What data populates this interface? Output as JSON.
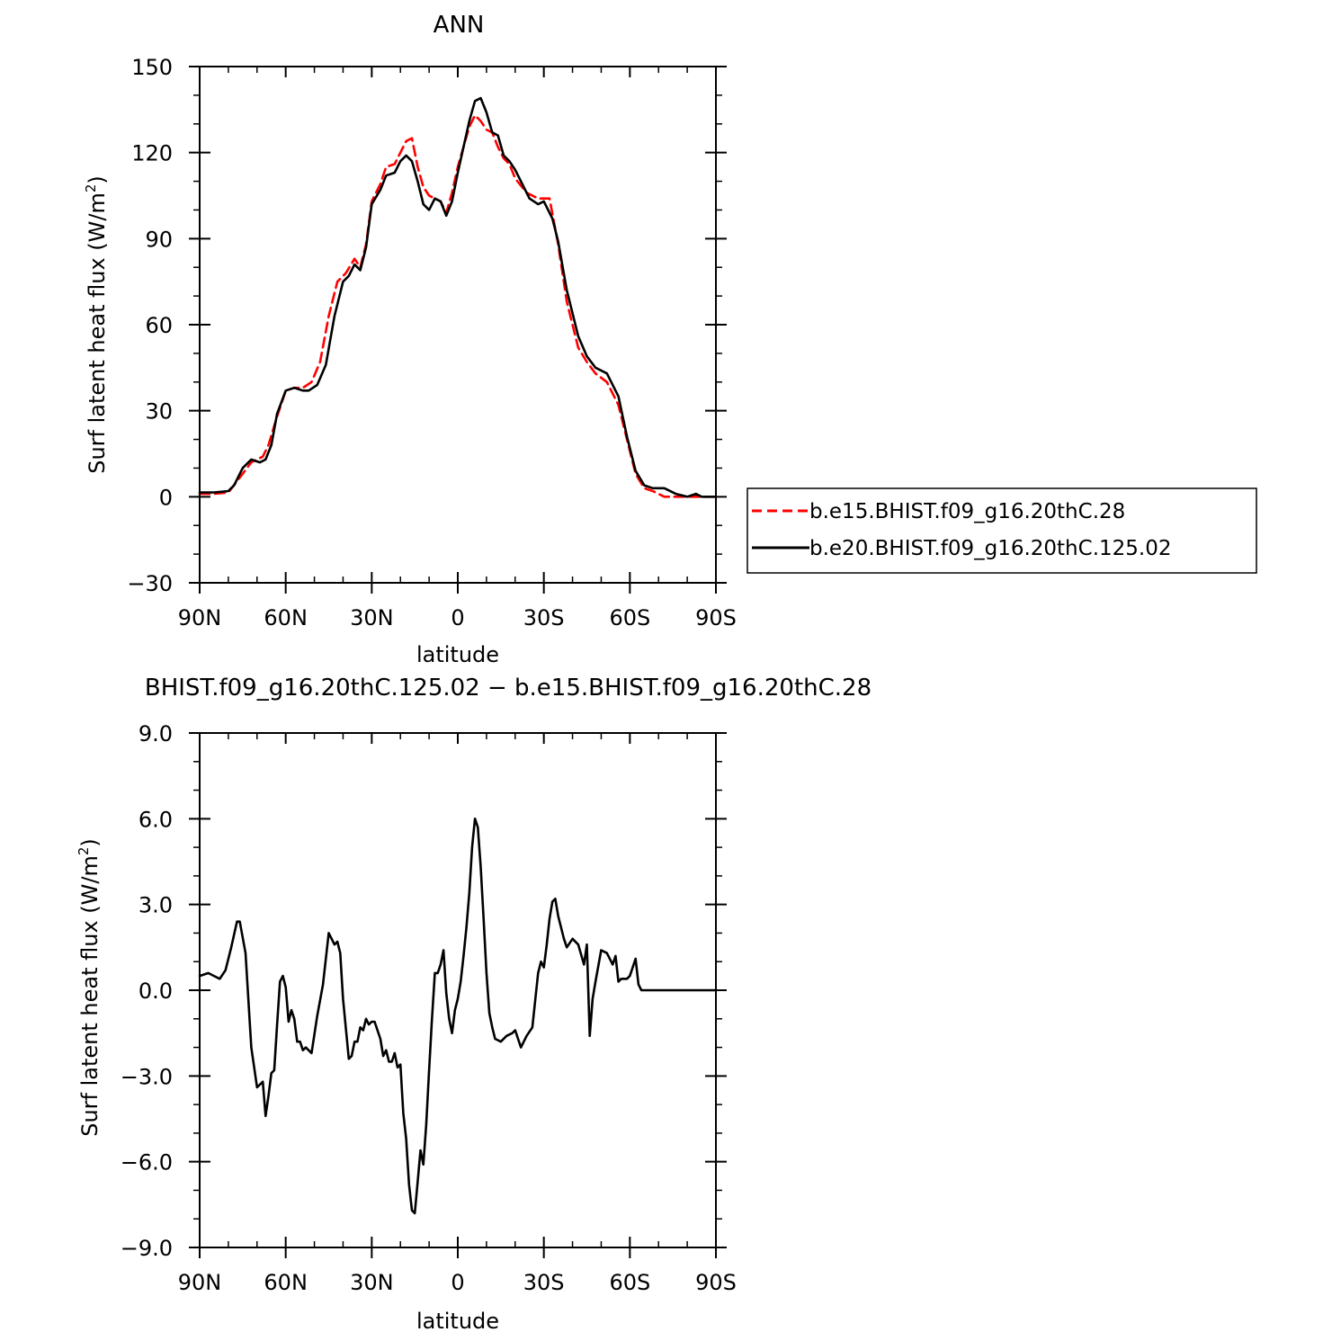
{
  "chart_data": [
    {
      "type": "line",
      "title": "ANN",
      "xlabel": "latitude",
      "ylabel": "Surf latent heat flux (W/m",
      "ylabel_sup": "2",
      "ylabel_end": ")",
      "xlim": [
        90,
        -90
      ],
      "ylim": [
        -30,
        150
      ],
      "x_ticks": [
        90,
        60,
        30,
        0,
        -30,
        -60,
        -90
      ],
      "x_tick_labels": [
        "90N",
        "60N",
        "30N",
        "0",
        "30S",
        "60S",
        "90S"
      ],
      "y_ticks": [
        -30,
        0,
        30,
        60,
        90,
        120,
        150
      ],
      "y_tick_labels": [
        "−30",
        "0",
        "30",
        "60",
        "90",
        "120",
        "150"
      ],
      "legend": {
        "placement": "right",
        "style": "boxed"
      },
      "series": [
        {
          "name": "b.e15.BHIST.f09_g16.20thC.28",
          "color": "#ff0000",
          "dash": "dashed",
          "x": [
            90,
            85,
            80,
            75,
            72,
            68,
            66,
            63,
            60,
            57,
            54,
            51,
            48,
            45,
            42,
            39,
            36,
            34,
            32,
            30,
            27,
            25,
            22,
            20,
            18,
            16,
            14,
            12,
            10,
            8,
            6,
            4,
            2,
            0,
            -2,
            -4,
            -6,
            -8,
            -10,
            -12,
            -14,
            -16,
            -18,
            -20,
            -24,
            -28,
            -32,
            -35,
            -38,
            -42,
            -45,
            -48,
            -52,
            -56,
            -59,
            -62,
            -65,
            -68,
            -72,
            -76,
            -80,
            -84,
            -87,
            -90
          ],
          "y": [
            1,
            1,
            1.5,
            8,
            12,
            14,
            18,
            28,
            37,
            38,
            38,
            40,
            47,
            63,
            75,
            78,
            83,
            80,
            88,
            103,
            109,
            115,
            116,
            120,
            124,
            125,
            115,
            108,
            105,
            104,
            103,
            99,
            106,
            115,
            122,
            129,
            133,
            131,
            128,
            127,
            122,
            118,
            116,
            111,
            106,
            104,
            104,
            88,
            68,
            52,
            47,
            43,
            40,
            32,
            20,
            8,
            3,
            2,
            0,
            0,
            0,
            0,
            0,
            0
          ]
        },
        {
          "name": "b.e20.BHIST.f09_g16.20thC.125.02",
          "color": "#000000",
          "dash": "solid",
          "x": [
            90,
            85,
            80,
            78,
            75,
            72,
            69,
            67,
            65,
            63,
            60,
            57,
            54,
            52,
            49,
            46,
            43,
            40,
            38,
            36,
            34,
            32,
            30,
            27,
            25,
            22,
            20,
            18,
            16,
            14,
            12,
            10,
            8,
            6,
            4,
            2,
            0,
            -2,
            -4,
            -6,
            -8,
            -10,
            -12,
            -14,
            -16,
            -18,
            -20,
            -22,
            -25,
            -28,
            -30,
            -33,
            -35,
            -38,
            -42,
            -45,
            -48,
            -52,
            -56,
            -59,
            -62,
            -65,
            -68,
            -72,
            -76,
            -80,
            -83,
            -85,
            -87,
            -90
          ],
          "y": [
            1.5,
            1.5,
            2,
            4,
            10,
            13,
            12,
            13,
            18,
            29,
            37,
            38,
            37,
            37,
            39,
            46,
            63,
            75,
            77,
            81,
            79,
            87,
            102,
            107,
            112,
            113,
            117,
            119,
            117,
            110,
            102,
            100,
            104,
            103,
            98,
            103,
            113,
            122,
            131,
            138,
            139,
            134,
            127,
            126,
            119,
            117,
            114,
            110,
            104,
            102,
            103,
            97,
            89,
            72,
            56,
            49,
            45,
            43,
            35,
            21,
            9,
            4,
            3,
            3,
            1,
            0,
            1,
            0,
            0,
            0
          ]
        }
      ]
    },
    {
      "type": "line",
      "title": "BHIST.f09_g16.20thC.125.02 − b.e15.BHIST.f09_g16.20thC.28",
      "xlabel": "latitude",
      "ylabel": "Surf latent heat flux (W/m",
      "ylabel_sup": "2",
      "ylabel_end": ")",
      "xlim": [
        90,
        -90
      ],
      "ylim": [
        -9,
        9
      ],
      "x_ticks": [
        90,
        60,
        30,
        0,
        -30,
        -60,
        -90
      ],
      "x_tick_labels": [
        "90N",
        "60N",
        "30N",
        "0",
        "30S",
        "60S",
        "90S"
      ],
      "y_ticks": [
        -9,
        -6,
        -3,
        0,
        3,
        6,
        9
      ],
      "y_tick_labels": [
        "−9.0",
        "−6.0",
        "−3.0",
        "0.0",
        "3.0",
        "6.0",
        "9.0"
      ],
      "series": [
        {
          "name": "",
          "color": "#000000",
          "dash": "solid",
          "x": [
            90,
            87,
            85,
            83,
            81,
            79,
            77,
            76,
            74,
            72,
            70,
            68,
            67,
            66,
            65,
            64,
            63,
            62,
            61,
            60,
            59,
            58,
            57,
            56,
            55,
            54,
            53,
            51,
            49,
            47,
            45,
            43,
            42,
            41,
            40,
            38,
            37,
            36,
            35,
            34,
            33,
            32,
            31,
            30,
            29,
            28,
            27,
            26,
            25,
            24,
            23,
            22,
            21,
            20,
            19,
            18,
            17,
            16,
            15,
            14,
            13,
            12,
            11,
            10,
            9,
            8,
            7,
            6,
            5,
            4,
            3,
            2,
            1,
            0,
            -1,
            -2,
            -3,
            -4,
            -5,
            -6,
            -7,
            -8,
            -9,
            -10,
            -11,
            -12,
            -13,
            -15,
            -17,
            -19,
            -20,
            -22,
            -24,
            -26,
            -28,
            -29,
            -30,
            -31,
            -32,
            -33,
            -34,
            -35,
            -37,
            -38,
            -40,
            -42,
            -44,
            -45,
            -46,
            -47,
            -48,
            -50,
            -52,
            -54,
            -55,
            -56,
            -57,
            -58,
            -59,
            -60,
            -62,
            -63,
            -64,
            -65,
            -66,
            -67,
            -68,
            -69,
            -71,
            -72,
            -73,
            -75,
            -76,
            -78,
            -80,
            -82,
            -84,
            -86,
            -88,
            -90
          ],
          "y": [
            0.5,
            0.6,
            0.5,
            0.4,
            0.7,
            1.5,
            2.4,
            2.4,
            1.3,
            -2,
            -3.4,
            -3.2,
            -4.4,
            -3.7,
            -2.9,
            -2.8,
            -1.2,
            0.3,
            0.5,
            0.1,
            -1.1,
            -0.7,
            -1,
            -1.8,
            -1.8,
            -2.1,
            -2,
            -2.2,
            -0.9,
            0.2,
            2,
            1.6,
            1.7,
            1.3,
            -0.3,
            -2.4,
            -2.3,
            -1.8,
            -1.8,
            -1.3,
            -1.4,
            -1,
            -1.2,
            -1.1,
            -1.1,
            -1.4,
            -1.7,
            -2.3,
            -2.1,
            -2.5,
            -2.5,
            -2.2,
            -2.7,
            -2.6,
            -4.3,
            -5.2,
            -6.8,
            -7.7,
            -7.8,
            -6.7,
            -5.6,
            -6.1,
            -4.7,
            -2.8,
            -1,
            0.6,
            0.6,
            0.9,
            1.4,
            -0.1,
            -1,
            -1.5,
            -0.7,
            -0.3,
            0.3,
            1.2,
            2.2,
            3.4,
            5,
            6,
            5.7,
            4.3,
            2.5,
            0.6,
            -0.8,
            -1.3,
            -1.7,
            -1.8,
            -1.6,
            -1.5,
            -1.4,
            -2,
            -1.6,
            -1.3,
            0.6,
            1,
            0.8,
            1.6,
            2.5,
            3.1,
            3.2,
            2.6,
            1.8,
            1.5,
            1.8,
            1.6,
            0.9,
            1.6,
            -1.6,
            -0.3,
            0.3,
            1.4,
            1.3,
            0.9,
            1.2,
            0.3,
            0.4,
            0.4,
            0.4,
            0.5,
            1.1,
            0.2,
            0,
            0,
            0,
            0,
            0,
            0,
            0,
            0,
            0,
            0,
            0,
            0,
            0,
            0,
            0,
            0,
            0,
            0
          ]
        }
      ]
    }
  ]
}
